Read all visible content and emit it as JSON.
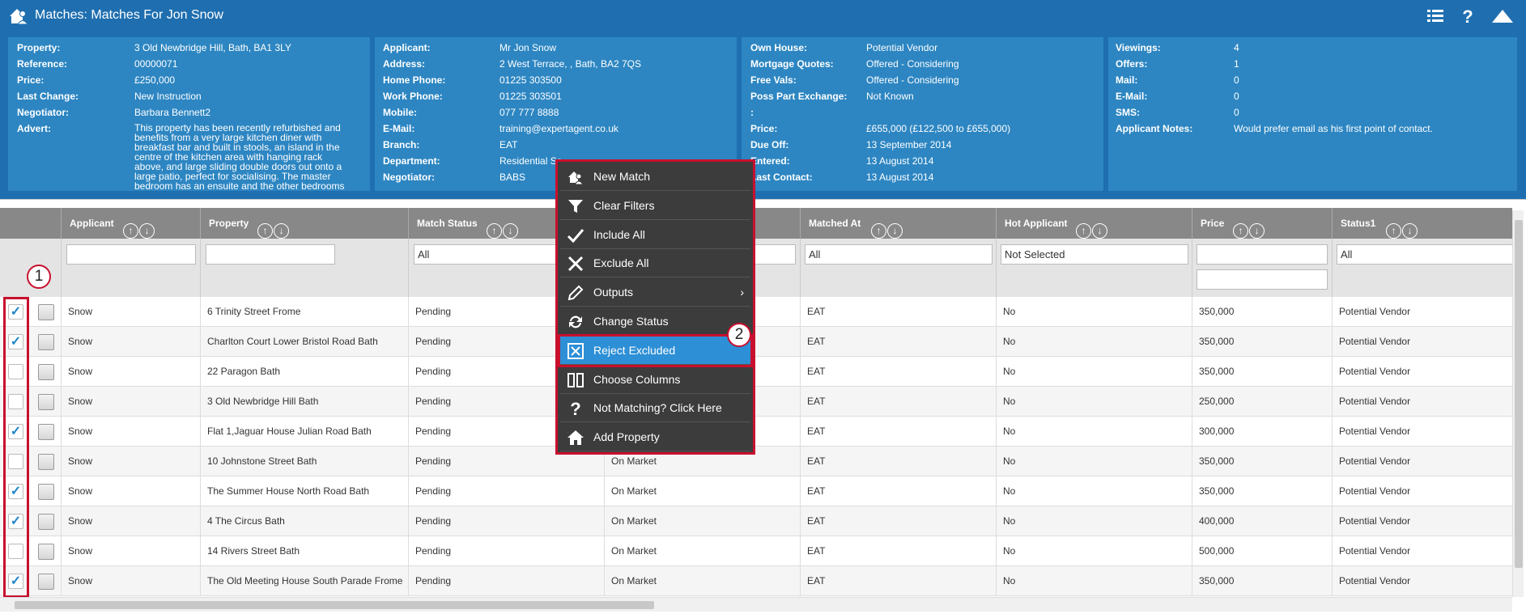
{
  "window": {
    "title": "Matches: Matches For Jon Snow"
  },
  "property_panel": [
    {
      "label": "Property:",
      "value": "3 Old Newbridge Hill, Bath, BA1 3LY"
    },
    {
      "label": "Reference:",
      "value": "00000071"
    },
    {
      "label": "Price:",
      "value": "£250,000"
    },
    {
      "label": "Last Change:",
      "value": "New Instruction"
    },
    {
      "label": "Negotiator:",
      "value": "Barbara Bennett2"
    },
    {
      "label": "Advert:",
      "value": "This property has been recently refurbished and benefits from a very large kitchen diner with breakfast bar and built in stools, an island in the centre of the kitchen area with hanging rack above, and large sliding double doors out onto a large patio, perfect for socialising. The master bedroom has an ensuite and the other bedrooms share a very large"
    }
  ],
  "applicant_panel": [
    {
      "label": "Applicant:",
      "value": "Mr Jon Snow"
    },
    {
      "label": "Address:",
      "value": "2 West Terrace, , Bath, BA2 7QS"
    },
    {
      "label": "Home Phone:",
      "value": "01225 303500"
    },
    {
      "label": "Work Phone:",
      "value": "01225 303501"
    },
    {
      "label": "Mobile:",
      "value": "077 777 8888"
    },
    {
      "label": "E-Mail:",
      "value": "training@expertagent.co.uk"
    },
    {
      "label": "Branch:",
      "value": "EAT"
    },
    {
      "label": "Department:",
      "value": "Residential Sa"
    },
    {
      "label": "Negotiator:",
      "value": "BABS"
    }
  ],
  "status_panel": [
    {
      "label": "Own House:",
      "value": "Potential Vendor"
    },
    {
      "label": "Mortgage Quotes:",
      "value": "Offered - Considering"
    },
    {
      "label": "Free Vals:",
      "value": "Offered - Considering"
    },
    {
      "label": "Poss Part Exchange:",
      "value": "Not Known"
    },
    {
      "label": ":",
      "value": ""
    },
    {
      "label": "Price:",
      "value": "£655,000 (£122,500 to £655,000)"
    },
    {
      "label": "Due Off:",
      "value": "13 September 2014"
    },
    {
      "label": "Entered:",
      "value": "13 August 2014"
    },
    {
      "label": "Last Contact:",
      "value": "13 August 2014"
    }
  ],
  "stats_panel": [
    {
      "label": "Viewings:",
      "value": "4"
    },
    {
      "label": "Offers:",
      "value": "1"
    },
    {
      "label": "Mail:",
      "value": "0"
    },
    {
      "label": "E-Mail:",
      "value": "0"
    },
    {
      "label": "SMS:",
      "value": "0"
    },
    {
      "label": "Applicant Notes:",
      "value": "Would prefer email as his first point of contact."
    }
  ],
  "columns": [
    "Applicant",
    "Property",
    "Match Status",
    "",
    "Matched At",
    "Hot Applicant",
    "Price",
    "Status1"
  ],
  "filters": {
    "match_status": "All",
    "matched_at": "All",
    "hot_applicant": "Not Selected",
    "status1": "All"
  },
  "rows": [
    {
      "checked": true,
      "applicant": "Snow",
      "property": "6 Trinity Street Frome",
      "match_status": "Pending",
      "market": "",
      "matched_at": "EAT",
      "hot": "No",
      "price": "350,000",
      "status1": "Potential Vendor"
    },
    {
      "checked": true,
      "applicant": "Snow",
      "property": "Charlton Court Lower Bristol Road Bath",
      "match_status": "Pending",
      "market": "",
      "matched_at": "EAT",
      "hot": "No",
      "price": "350,000",
      "status1": "Potential Vendor"
    },
    {
      "checked": false,
      "applicant": "Snow",
      "property": "22 Paragon Bath",
      "match_status": "Pending",
      "market": "",
      "matched_at": "EAT",
      "hot": "No",
      "price": "350,000",
      "status1": "Potential Vendor"
    },
    {
      "checked": false,
      "applicant": "Snow",
      "property": "3 Old Newbridge Hill Bath",
      "match_status": "Pending",
      "market": "",
      "matched_at": "EAT",
      "hot": "No",
      "price": "250,000",
      "status1": "Potential Vendor"
    },
    {
      "checked": true,
      "applicant": "Snow",
      "property": "Flat 1,Jaguar House Julian Road Bath",
      "match_status": "Pending",
      "market": "",
      "matched_at": "EAT",
      "hot": "No",
      "price": "300,000",
      "status1": "Potential Vendor"
    },
    {
      "checked": false,
      "applicant": "Snow",
      "property": "10 Johnstone Street Bath",
      "match_status": "Pending",
      "market": "On Market",
      "matched_at": "EAT",
      "hot": "No",
      "price": "350,000",
      "status1": "Potential Vendor"
    },
    {
      "checked": true,
      "applicant": "Snow",
      "property": "The Summer House North Road Bath",
      "match_status": "Pending",
      "market": "On Market",
      "matched_at": "EAT",
      "hot": "No",
      "price": "350,000",
      "status1": "Potential Vendor"
    },
    {
      "checked": true,
      "applicant": "Snow",
      "property": "4 The Circus Bath",
      "match_status": "Pending",
      "market": "On Market",
      "matched_at": "EAT",
      "hot": "No",
      "price": "400,000",
      "status1": "Potential Vendor"
    },
    {
      "checked": false,
      "applicant": "Snow",
      "property": "14 Rivers Street Bath",
      "match_status": "Pending",
      "market": "On Market",
      "matched_at": "EAT",
      "hot": "No",
      "price": "500,000",
      "status1": "Potential Vendor"
    },
    {
      "checked": true,
      "applicant": "Snow",
      "property": "The Old Meeting House South Parade Frome",
      "match_status": "Pending",
      "market": "On Market",
      "matched_at": "EAT",
      "hot": "No",
      "price": "350,000",
      "status1": "Potential Vendor"
    }
  ],
  "context_menu": {
    "items": [
      {
        "label": "New Match",
        "icon": "new-match-icon"
      },
      {
        "label": "Clear Filters",
        "icon": "filter-icon"
      },
      {
        "label": "Include All",
        "icon": "check-icon"
      },
      {
        "label": "Exclude All",
        "icon": "x-icon"
      },
      {
        "label": "Outputs",
        "icon": "pencil-icon",
        "submenu": true
      },
      {
        "label": "Change Status",
        "icon": "refresh-icon"
      },
      {
        "label": "Reject Excluded",
        "icon": "reject-icon",
        "selected": true
      },
      {
        "label": "Choose Columns",
        "icon": "columns-icon"
      },
      {
        "label": "Not Matching? Click Here",
        "icon": "question-icon"
      },
      {
        "label": "Add Property",
        "icon": "home-icon"
      }
    ],
    "submenu_arrow": "›"
  },
  "annotations": {
    "badge1": "1",
    "badge2": "2"
  },
  "sort_glyphs": {
    "up": "↑",
    "down": "↓"
  },
  "colors": {
    "header_blue": "#1f6fb0",
    "panel_blue": "#2d86c2",
    "highlight": "#2d8fd6",
    "annotation_red": "#c8102e"
  }
}
